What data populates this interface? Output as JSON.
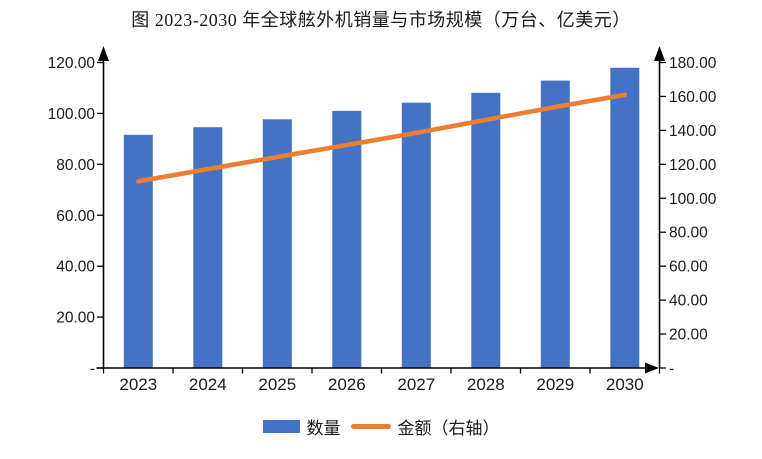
{
  "chart_data": {
    "type": "combo",
    "title": "图 2023-2030 年全球舷外机销量与市场规模（万台、亿美元）",
    "categories": [
      "2023",
      "2024",
      "2025",
      "2026",
      "2027",
      "2028",
      "2029",
      "2030"
    ],
    "series": [
      {
        "name": "数量",
        "type": "bar",
        "axis": "left",
        "color": "#4472C4",
        "values": [
          91.6,
          94.6,
          97.7,
          101.0,
          104.2,
          108.1,
          112.9,
          117.9
        ]
      },
      {
        "name": "金额（右轴）",
        "type": "line",
        "axis": "right",
        "color": "#ED7D31",
        "values": [
          110.0,
          117.2,
          124.3,
          131.4,
          138.5,
          146.2,
          153.8,
          160.9
        ]
      }
    ],
    "left_axis": {
      "min": 0,
      "max": 120,
      "tick_step": 20,
      "tick_values": [
        0,
        20,
        40,
        60,
        80,
        100,
        120
      ],
      "tick_labels": [
        "-",
        "20.00",
        "40.00",
        "60.00",
        "80.00",
        "100.00",
        "120.00"
      ]
    },
    "right_axis": {
      "min": 0,
      "max": 180,
      "tick_step": 20,
      "tick_values": [
        0,
        20,
        40,
        60,
        80,
        100,
        120,
        140,
        160,
        180
      ],
      "tick_labels": [
        "-",
        "20.00",
        "40.00",
        "60.00",
        "80.00",
        "100.00",
        "120.00",
        "140.00",
        "160.00",
        "180.00"
      ]
    },
    "legend_position": "bottom",
    "grid": false,
    "axis_color": "#000000",
    "text_color": "#1a1a1a"
  }
}
